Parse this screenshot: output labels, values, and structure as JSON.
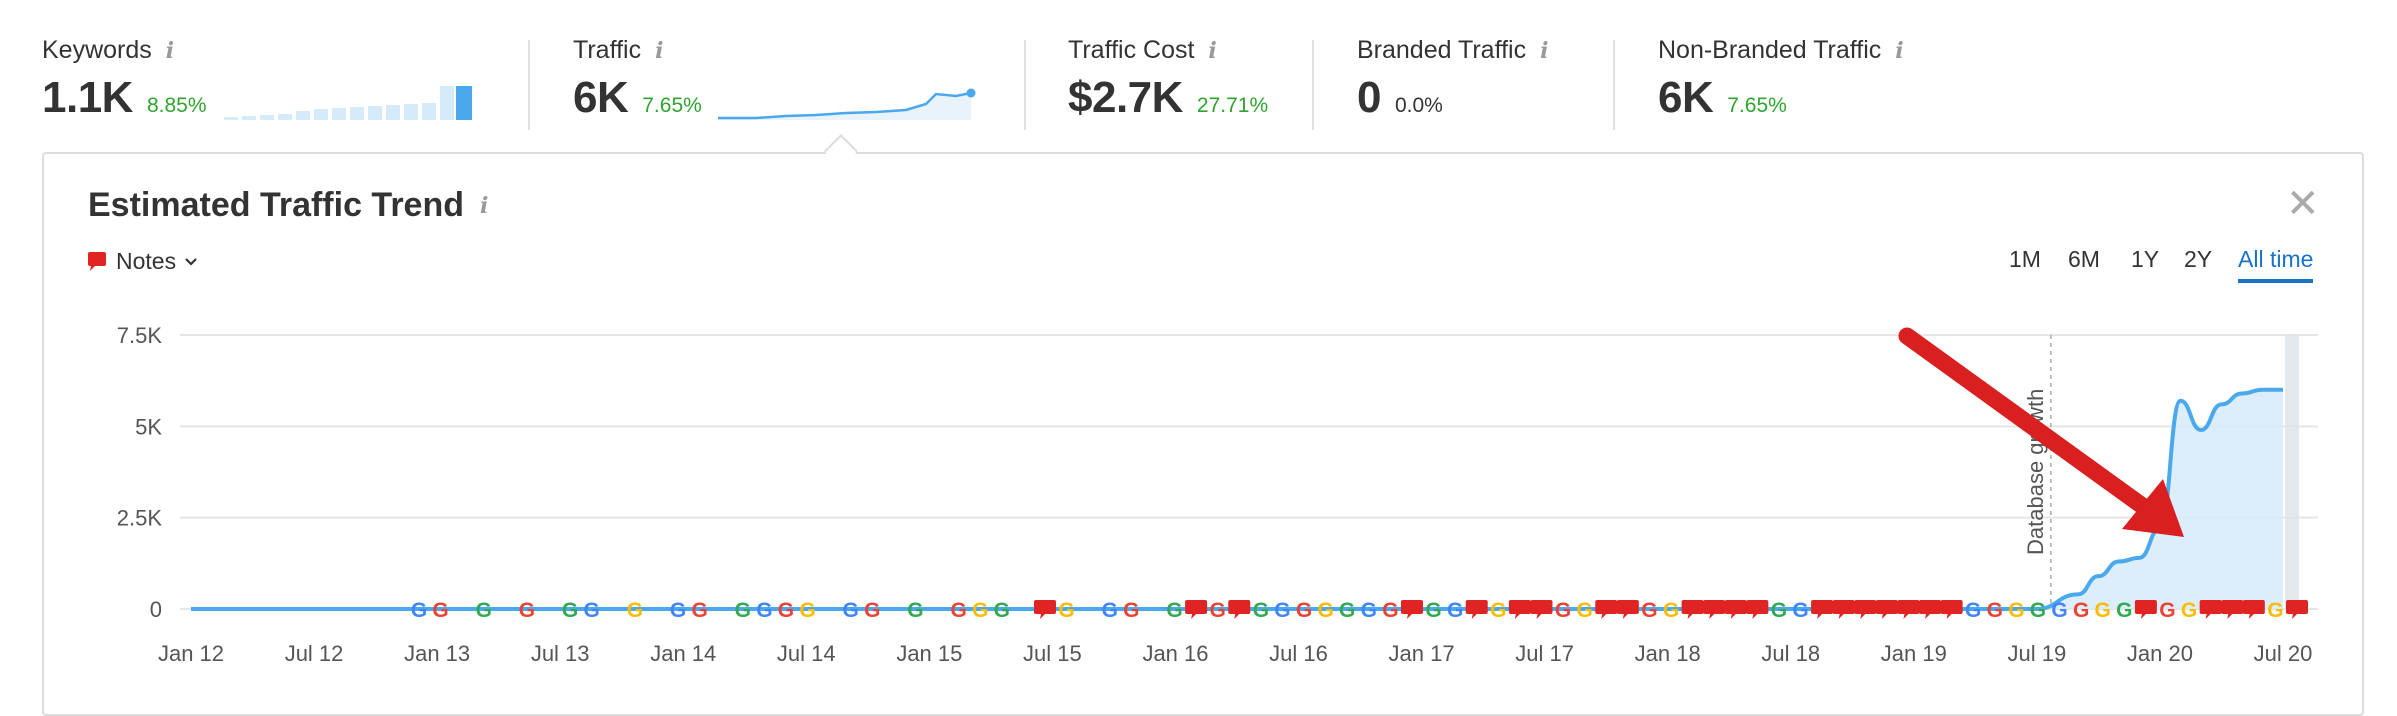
{
  "metrics": [
    {
      "label": "Keywords",
      "value": "1.1K",
      "change": "8.85%",
      "positive": true
    },
    {
      "label": "Traffic",
      "value": "6K",
      "change": "7.65%",
      "positive": true
    },
    {
      "label": "Traffic Cost",
      "value": "$2.7K",
      "change": "27.71%",
      "positive": true
    },
    {
      "label": "Branded Traffic",
      "value": "0",
      "change": "0.0%",
      "positive": false
    },
    {
      "label": "Non-Branded Traffic",
      "value": "6K",
      "change": "7.65%",
      "positive": true
    }
  ],
  "info_glyph": "i",
  "card": {
    "title": "Estimated Traffic Trend",
    "close": "✕",
    "notes_label": "Notes",
    "ranges": [
      "1M",
      "6M",
      "1Y",
      "2Y",
      "All time"
    ],
    "active_range": "All time"
  },
  "colors": {
    "accent": "#1a73c6",
    "positive": "#2fa52f",
    "line": "#4aa8ec",
    "area": "#d6ebfa",
    "note_red": "#e02424",
    "arrow_red": "#d91f1f"
  },
  "chart_data": {
    "type": "area",
    "ylim": [
      0,
      7500
    ],
    "yticks": [
      "0",
      "2.5K",
      "5K",
      "7.5K"
    ],
    "xticks": [
      "Jan 12",
      "Jul 12",
      "Jan 13",
      "Jul 13",
      "Jan 14",
      "Jul 14",
      "Jan 15",
      "Jul 15",
      "Jan 16",
      "Jul 16",
      "Jan 17",
      "Jul 17",
      "Jan 18",
      "Jul 18",
      "Jan 19",
      "Jul 19",
      "Jan 20",
      "Jul 20"
    ],
    "annotation": "Database growth",
    "series": [
      {
        "x": [
          "2012-01",
          "2019-07",
          "2019-09",
          "2019-10",
          "2019-11",
          "2019-12",
          "2020-01",
          "2020-02",
          "2020-03",
          "2020-04",
          "2020-05",
          "2020-06",
          "2020-07"
        ],
        "values": [
          0,
          0,
          400,
          900,
          1300,
          1400,
          2200,
          5700,
          4900,
          5600,
          5900,
          6000,
          6000
        ]
      }
    ],
    "markers_sequence": "GG G G GG G GG GGGG GG G GGG NG GG GNGNGGGGGGGNGGNGNNGGNNGGNNNNGGNNNNNNNGGGGGGGGNGGNNNGN"
  }
}
